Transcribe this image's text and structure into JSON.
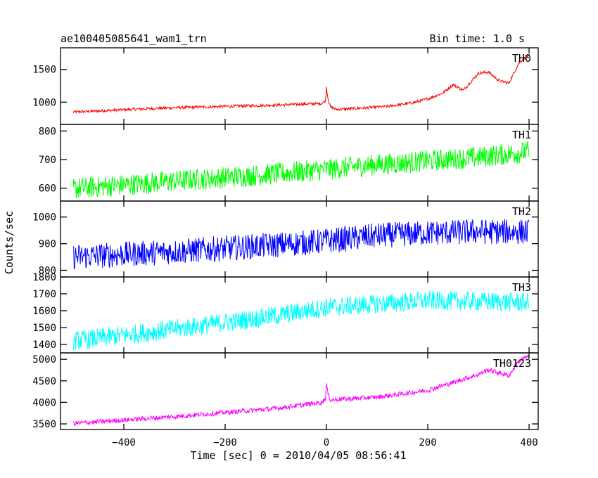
{
  "header": {
    "title": "ae100405085641_wam1_trn",
    "bin_time": "Bin time: 1.0 s"
  },
  "chart_data": {
    "type": "line",
    "title": "ae100405085641_wam1_trn",
    "xlabel": "Time [sec] 0 = 2010/04/05 08:56:41",
    "ylabel": "Counts/sec",
    "xlim": [
      -525,
      418
    ],
    "x_ticks": [
      -400,
      -200,
      0,
      200,
      400
    ],
    "x_tick_labels": [
      "−400",
      "−200",
      "0",
      "200",
      "400"
    ],
    "x_range_data": [
      -500,
      400
    ],
    "panels": [
      {
        "name": "TH0",
        "color": "#ff0000",
        "ylim": [
          660,
          1830
        ],
        "yticks": [
          1000,
          1500
        ],
        "points": [
          [
            -500,
            850
          ],
          [
            -450,
            865
          ],
          [
            -400,
            885
          ],
          [
            -300,
            915
          ],
          [
            -200,
            935
          ],
          [
            -100,
            955
          ],
          [
            -10,
            980
          ],
          [
            -2,
            1020
          ],
          [
            0,
            1230
          ],
          [
            3,
            1060
          ],
          [
            8,
            925
          ],
          [
            20,
            890
          ],
          [
            60,
            905
          ],
          [
            120,
            935
          ],
          [
            170,
            990
          ],
          [
            200,
            1050
          ],
          [
            230,
            1140
          ],
          [
            250,
            1270
          ],
          [
            270,
            1180
          ],
          [
            300,
            1440
          ],
          [
            320,
            1460
          ],
          [
            340,
            1330
          ],
          [
            360,
            1290
          ],
          [
            380,
            1600
          ],
          [
            395,
            1700
          ]
        ],
        "noise": 22
      },
      {
        "name": "TH1",
        "color": "#00ff00",
        "ylim": [
          555,
          823
        ],
        "yticks": [
          600,
          700,
          800
        ],
        "points": [
          [
            -500,
            598
          ],
          [
            -300,
            625
          ],
          [
            -100,
            650
          ],
          [
            100,
            682
          ],
          [
            200,
            695
          ],
          [
            300,
            708
          ],
          [
            400,
            728
          ]
        ],
        "noise": 38
      },
      {
        "name": "TH2",
        "color": "#0000ff",
        "ylim": [
          775,
          1060
        ],
        "yticks": [
          800,
          900,
          1000
        ],
        "points": [
          [
            -500,
            850
          ],
          [
            -300,
            870
          ],
          [
            -100,
            895
          ],
          [
            0,
            910
          ],
          [
            100,
            930
          ],
          [
            200,
            940
          ],
          [
            300,
            945
          ],
          [
            400,
            945
          ]
        ],
        "noise": 48
      },
      {
        "name": "TH3",
        "color": "#00ffff",
        "ylim": [
          1350,
          1800
        ],
        "yticks": [
          1400,
          1500,
          1600,
          1700,
          1800
        ],
        "points": [
          [
            -500,
            1420
          ],
          [
            -300,
            1490
          ],
          [
            -100,
            1570
          ],
          [
            0,
            1620
          ],
          [
            100,
            1640
          ],
          [
            200,
            1660
          ],
          [
            300,
            1655
          ],
          [
            400,
            1650
          ]
        ],
        "noise": 58
      },
      {
        "name": "TH0123",
        "color": "#ff00ff",
        "ylim": [
          3370,
          5150
        ],
        "yticks": [
          3500,
          4000,
          4500,
          5000
        ],
        "points": [
          [
            -500,
            3510
          ],
          [
            -300,
            3670
          ],
          [
            -100,
            3860
          ],
          [
            -10,
            4000
          ],
          [
            -2,
            4090
          ],
          [
            0,
            4420
          ],
          [
            3,
            4200
          ],
          [
            8,
            4060
          ],
          [
            100,
            4120
          ],
          [
            200,
            4280
          ],
          [
            300,
            4650
          ],
          [
            320,
            4760
          ],
          [
            360,
            4620
          ],
          [
            380,
            4960
          ],
          [
            395,
            5050
          ]
        ],
        "noise": 55
      }
    ]
  }
}
